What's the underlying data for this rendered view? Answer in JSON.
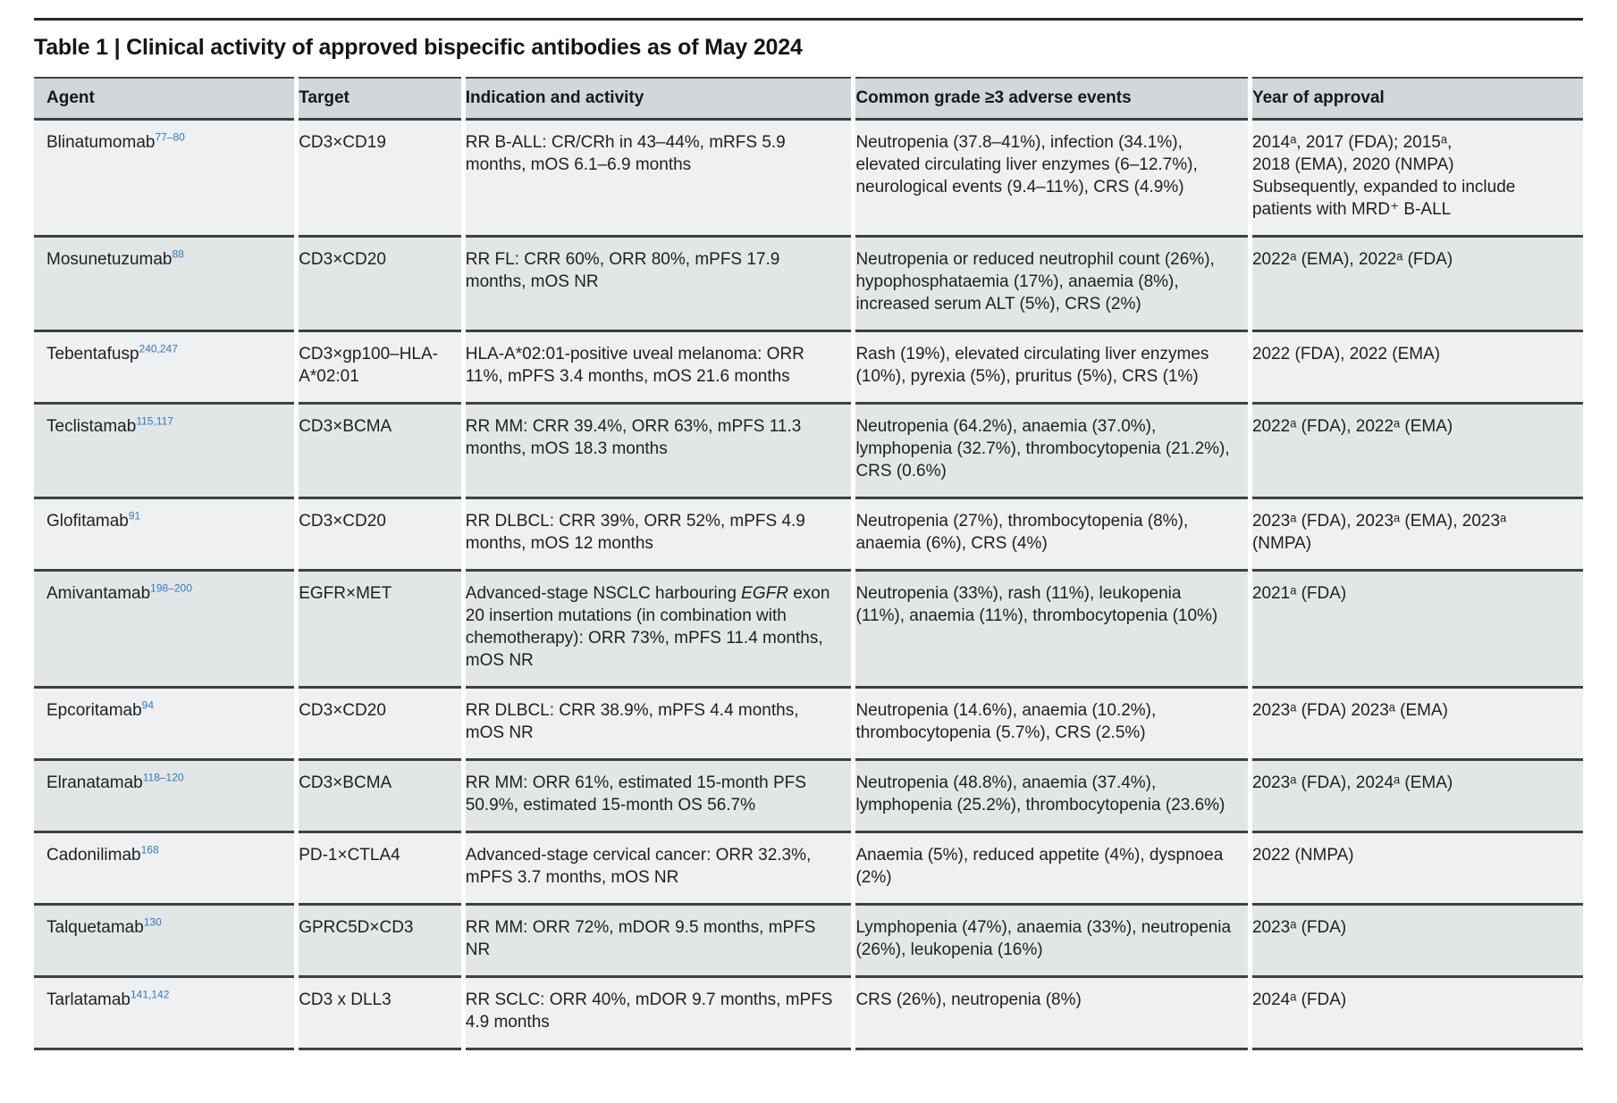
{
  "page": {
    "title": "Table 1 | Clinical activity of approved bispecific antibodies as of May 2024"
  },
  "colors": {
    "ref-blue": "#3579b8",
    "header-bg": "#d2d7d9",
    "row-light": "#eef0f1",
    "row-dark": "#e2e6e7",
    "rule-dark": "#26292b",
    "rule-sep": "#3c4143"
  },
  "table": {
    "columns": [
      "Agent",
      "Target",
      "Indication and activity",
      "Common grade ≥3 adverse events",
      "Year of approval"
    ],
    "rows": [
      {
        "agent": "Blinatumomab",
        "ref": "77–80",
        "target": "CD3×CD19",
        "indication": "RR B-ALL: CR/CRh in 43–44%, mRFS 5.9 months, mOS 6.1–6.9 months",
        "adverse": "Neutropenia (37.8–41%), infection (34.1%), elevated circulating liver enzymes (6–12.7%), neurological events (9.4–11%), CRS (4.9%)",
        "year": "2014ᵃ, 2017 (FDA); 2015ᵃ,\n2018 (EMA), 2020 (NMPA)\nSubsequently, expanded to include patients with MRD⁺ B-ALL"
      },
      {
        "agent": "Mosunetuzumab",
        "ref": "88",
        "target": "CD3×CD20",
        "indication": "RR FL: CRR 60%, ORR 80%, mPFS 17.9 months, mOS NR",
        "adverse": "Neutropenia or reduced neutrophil count (26%), hypophosphataemia (17%), anaemia (8%), increased serum ALT (5%), CRS (2%)",
        "year": "2022ᵃ (EMA), 2022ᵃ (FDA)"
      },
      {
        "agent": "Tebentafusp",
        "ref": "240,247",
        "target": "CD3×gp100–HLA-A*02:01",
        "indication": "HLA-A*02:01-positive uveal melanoma: ORR 11%, mPFS 3.4 months, mOS 21.6 months",
        "adverse": "Rash (19%), elevated circulating liver enzymes (10%), pyrexia (5%), pruritus (5%), CRS (1%)",
        "year": "2022 (FDA), 2022 (EMA)"
      },
      {
        "agent": "Teclistamab",
        "ref": "115,117",
        "target": "CD3×BCMA",
        "indication": "RR MM: CRR 39.4%, ORR 63%, mPFS 11.3 months, mOS 18.3 months",
        "adverse": "Neutropenia (64.2%), anaemia (37.0%), lymphopenia (32.7%), thrombocytopenia (21.2%), CRS (0.6%)",
        "year": "2022ᵃ (FDA), 2022ᵃ (EMA)"
      },
      {
        "agent": "Glofitamab",
        "ref": "91",
        "target": "CD3×CD20",
        "indication": "RR DLBCL: CRR 39%, ORR 52%, mPFS 4.9 months, mOS 12 months",
        "adverse": "Neutropenia (27%), thrombocytopenia (8%), anaemia (6%), CRS (4%)",
        "year": "2023ᵃ (FDA), 2023ᵃ (EMA), 2023ᵃ (NMPA)"
      },
      {
        "agent": "Amivantamab",
        "ref": "198–200",
        "target": "EGFR×MET",
        "indication": [
          {
            "t": "Advanced-stage NSCLC harbouring "
          },
          {
            "t": "EGFR",
            "i": true
          },
          {
            "t": " exon 20 insertion mutations (in combination with chemotherapy): ORR 73%, mPFS 11.4 months, mOS NR"
          }
        ],
        "adverse": "Neutropenia (33%), rash (11%), leukopenia (11%), anaemia (11%), thrombocytopenia (10%)",
        "year": "2021ᵃ (FDA)"
      },
      {
        "agent": "Epcoritamab",
        "ref": "94",
        "target": "CD3×CD20",
        "indication": "RR DLBCL: CRR 38.9%, mPFS 4.4 months, mOS NR",
        "adverse": "Neutropenia (14.6%), anaemia (10.2%), thrombocytopenia (5.7%), CRS (2.5%)",
        "year": "2023ᵃ (FDA) 2023ᵃ (EMA)"
      },
      {
        "agent": "Elranatamab",
        "ref": "118–120",
        "target": "CD3×BCMA",
        "indication": "RR MM: ORR 61%, estimated 15-month PFS 50.9%, estimated 15-month OS 56.7%",
        "adverse": "Neutropenia (48.8%), anaemia (37.4%), lymphopenia (25.2%), thrombocytopenia (23.6%)",
        "year": "2023ᵃ (FDA), 2024ᵃ (EMA)"
      },
      {
        "agent": "Cadonilimab",
        "ref": "168",
        "target": "PD-1×CTLA4",
        "indication": "Advanced-stage cervical cancer: ORR 32.3%, mPFS 3.7 months, mOS NR",
        "adverse": "Anaemia (5%), reduced appetite (4%), dyspnoea (2%)",
        "year": "2022 (NMPA)"
      },
      {
        "agent": "Talquetamab",
        "ref": "130",
        "target": "GPRC5D×CD3",
        "indication": "RR MM: ORR 72%, mDOR 9.5 months, mPFS NR",
        "adverse": "Lymphopenia (47%), anaemia (33%), neutropenia (26%), leukopenia (16%)",
        "year": "2023ᵃ (FDA)"
      },
      {
        "agent": "Tarlatamab",
        "ref": "141,142",
        "target": "CD3 x DLL3",
        "indication": "RR SCLC: ORR 40%, mDOR 9.7 months, mPFS 4.9 months",
        "adverse": "CRS (26%), neutropenia (8%)",
        "year": "2024ᵃ (FDA)"
      }
    ]
  }
}
